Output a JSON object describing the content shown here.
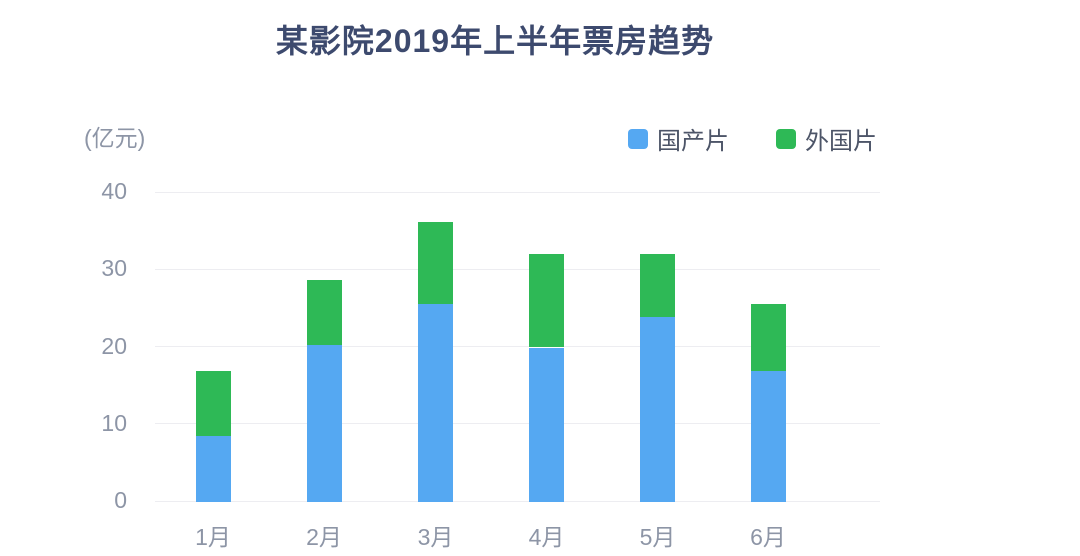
{
  "title": {
    "text": "某影院2019年上半年票房趋势",
    "color": "#3d4a6e"
  },
  "y_axis": {
    "unit_label": "(亿元)",
    "ticks": [
      "0",
      "10",
      "20",
      "30",
      "40"
    ]
  },
  "x_axis": {
    "labels": [
      "1月",
      "2月",
      "3月",
      "4月",
      "5月",
      "6月"
    ]
  },
  "legend": [
    {
      "label": "国产片",
      "color": "#55a8f2"
    },
    {
      "label": "外国片",
      "color": "#2eb956"
    }
  ],
  "colors": {
    "domestic_blue": "#55a8f2",
    "foreign_green": "#2eb956",
    "gridline": "#ededf1",
    "axis_text": "#8d95a6",
    "title_text": "#3d4a6e",
    "background": "#ffffff"
  },
  "chart_data": {
    "type": "bar",
    "stacked": true,
    "title": "某影院2019年上半年票房趋势",
    "categories": [
      "1月",
      "2月",
      "3月",
      "4月",
      "5月",
      "6月"
    ],
    "series": [
      {
        "name": "国产片",
        "color": "#55a8f2",
        "values": [
          8.5,
          20.3,
          25.6,
          20.0,
          24.0,
          17.0
        ]
      },
      {
        "name": "外国片",
        "color": "#2eb956",
        "values": [
          8.5,
          8.5,
          10.6,
          12.1,
          8.1,
          8.6
        ]
      }
    ],
    "stack_totals": [
      17.0,
      28.8,
      36.2,
      32.1,
      32.1,
      25.6
    ],
    "xlabel": "",
    "ylabel": "(亿元)",
    "ylim": [
      0,
      40
    ],
    "ytick_interval": 10,
    "grid": true,
    "legend_position": "top-right"
  }
}
